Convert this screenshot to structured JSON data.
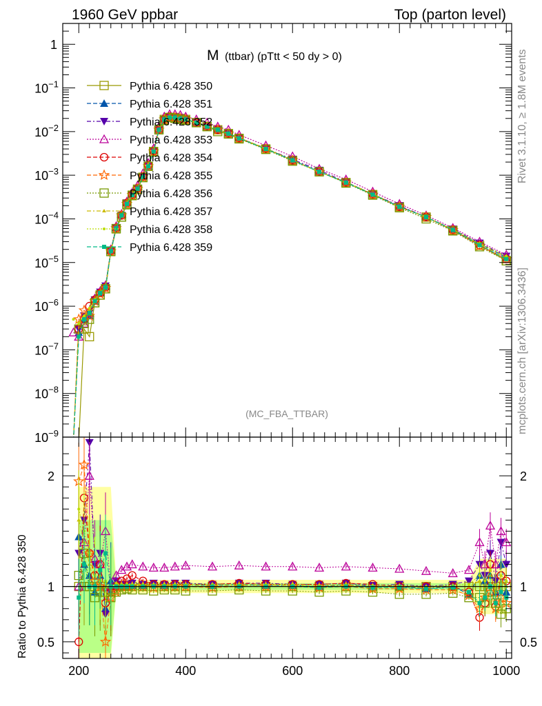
{
  "header": {
    "left": "1960 GeV ppbar",
    "right": "Top (parton level)"
  },
  "side_labels": {
    "rivet": "Rivet 3.1.10, ≥ 1.8M events",
    "mcplots": "mcplots.cern.ch [arXiv:1306.3436]"
  },
  "plot_title": {
    "main": "M",
    "sub": "(ttbar)  (pTtt < 50 dy > 0)"
  },
  "analysis_tag": "(MC_FBA_TTBAR)",
  "ratio_ylabel": "Ratio to Pythia 6.428 350",
  "colors": {
    "frame": "#000000",
    "grey_text": "#888888",
    "ref_band": "#ffff66",
    "ref_band_inner": "#66ff66"
  },
  "chart_data": [
    {
      "type": "line",
      "panel": "main",
      "yscale": "log",
      "xlim": [
        170,
        1010
      ],
      "ylim": [
        1e-09,
        3
      ],
      "y_ticks": [
        {
          "value": 1,
          "label": "1"
        },
        {
          "value": 0.1,
          "label": "10^-1"
        },
        {
          "value": 0.01,
          "label": "10^-2"
        },
        {
          "value": 0.001,
          "label": "10^-3"
        },
        {
          "value": 0.0001,
          "label": "10^-4"
        },
        {
          "value": 1e-05,
          "label": "10^-5"
        },
        {
          "value": 1e-06,
          "label": "10^-6"
        },
        {
          "value": 1e-07,
          "label": "10^-7"
        },
        {
          "value": 1e-08,
          "label": "10^-8"
        },
        {
          "value": 1e-09,
          "label": "10^-9"
        }
      ],
      "legend_position": "top-left",
      "x": [
        190,
        200,
        210,
        220,
        230,
        240,
        250,
        260,
        270,
        280,
        290,
        300,
        310,
        320,
        330,
        340,
        350,
        360,
        370,
        380,
        390,
        400,
        420,
        440,
        460,
        480,
        500,
        550,
        600,
        650,
        700,
        750,
        800,
        850,
        900,
        950,
        1000
      ],
      "series": [
        {
          "name": "Pythia 6.428 350",
          "color": "#999900",
          "marker": "square-open",
          "dash": "solid",
          "values": [
            0.0,
            0.0,
            3e-07,
            2e-07,
            1.2e-06,
            1.8e-06,
            2.5e-06,
            1.8e-05,
            6e-05,
            0.00011,
            0.00022,
            0.00035,
            0.00048,
            0.0009,
            0.0016,
            0.0035,
            0.011,
            0.019,
            0.021,
            0.021,
            0.02,
            0.019,
            0.016,
            0.013,
            0.011,
            0.009,
            0.007,
            0.004,
            0.0022,
            0.0012,
            0.00068,
            0.00036,
            0.00019,
            0.00011,
            5.5e-05,
            2.5e-05,
            1.1e-05
          ]
        },
        {
          "name": "Pythia 6.428 351",
          "color": "#0055aa",
          "marker": "triangle-up",
          "dash": "dash",
          "values": [
            0.0,
            2.5e-07,
            5e-07,
            6e-07,
            1.3e-06,
            2e-06,
            2.8e-06,
            1.85e-05,
            6.2e-05,
            0.00012,
            0.00023,
            0.00036,
            0.00049,
            0.00092,
            0.0016,
            0.0036,
            0.011,
            0.019,
            0.021,
            0.021,
            0.02,
            0.019,
            0.016,
            0.013,
            0.011,
            0.0091,
            0.0071,
            0.0041,
            0.0022,
            0.0012,
            0.00069,
            0.00037,
            0.00019,
            0.00011,
            5.7e-05,
            2.7e-05,
            1.3e-05
          ]
        },
        {
          "name": "Pythia 6.428 352",
          "color": "#5500aa",
          "marker": "triangle-down",
          "dash": "dashdot",
          "values": [
            0.0,
            3e-07,
            6e-07,
            7e-07,
            1.4e-06,
            2.1e-06,
            2.9e-06,
            1.9e-05,
            6.3e-05,
            0.00012,
            0.00023,
            0.00036,
            0.0005,
            0.00093,
            0.0017,
            0.0036,
            0.011,
            0.019,
            0.022,
            0.021,
            0.02,
            0.019,
            0.016,
            0.013,
            0.011,
            0.0092,
            0.0072,
            0.0041,
            0.0023,
            0.0013,
            0.0007,
            0.00037,
            0.0002,
            0.00011,
            5.8e-05,
            2.8e-05,
            1.4e-05
          ]
        },
        {
          "name": "Pythia 6.428 353",
          "color": "#bb0099",
          "marker": "triangle-up-open",
          "dash": "dot",
          "values": [
            2.5e-07,
            2e-07,
            4e-07,
            7e-07,
            1.5e-06,
            2.2e-06,
            3e-06,
            2e-05,
            6.8e-05,
            0.00013,
            0.00025,
            0.0004,
            0.00058,
            0.0011,
            0.0019,
            0.0041,
            0.013,
            0.022,
            0.025,
            0.025,
            0.024,
            0.022,
            0.019,
            0.016,
            0.013,
            0.011,
            0.0084,
            0.0048,
            0.0027,
            0.0014,
            0.0008,
            0.00042,
            0.00022,
            0.00012,
            6.2e-05,
            3e-05,
            1.5e-05
          ]
        },
        {
          "name": "Pythia 6.428 354",
          "color": "#dd0000",
          "marker": "circle-open",
          "dash": "dash",
          "values": [
            0.0,
            3e-07,
            5e-07,
            1e-06,
            1.4e-06,
            2e-06,
            2.7e-06,
            1.85e-05,
            6.2e-05,
            0.00012,
            0.00023,
            0.00036,
            0.0005,
            0.00094,
            0.0017,
            0.0036,
            0.011,
            0.019,
            0.022,
            0.021,
            0.02,
            0.019,
            0.016,
            0.013,
            0.011,
            0.0091,
            0.0071,
            0.0041,
            0.0022,
            0.0012,
            0.00069,
            0.00037,
            0.00019,
            0.00011,
            5.6e-05,
            2.5e-05,
            1.2e-05
          ]
        },
        {
          "name": "Pythia 6.428 355",
          "color": "#ff6600",
          "marker": "star-open",
          "dash": "dash",
          "values": [
            0.0,
            5e-07,
            8e-07,
            6e-07,
            1.3e-06,
            1.9e-06,
            2.6e-06,
            1.8e-05,
            6.1e-05,
            0.00012,
            0.00022,
            0.00035,
            0.00049,
            0.00091,
            0.0016,
            0.0035,
            0.011,
            0.019,
            0.021,
            0.021,
            0.02,
            0.019,
            0.016,
            0.013,
            0.011,
            0.009,
            0.007,
            0.004,
            0.0022,
            0.0012,
            0.00068,
            0.00036,
            0.00019,
            0.00011,
            5.5e-05,
            2.4e-05,
            1.2e-05
          ]
        },
        {
          "name": "Pythia 6.428 356",
          "color": "#779900",
          "marker": "square-open",
          "dash": "dot",
          "values": [
            0.0,
            3e-07,
            4e-07,
            5e-07,
            1.2e-06,
            1.8e-06,
            2.5e-06,
            1.78e-05,
            5.9e-05,
            0.00011,
            0.00021,
            0.00034,
            0.00047,
            0.00088,
            0.0016,
            0.0034,
            0.011,
            0.018,
            0.021,
            0.02,
            0.019,
            0.018,
            0.016,
            0.013,
            0.01,
            0.0088,
            0.0068,
            0.0039,
            0.0021,
            0.0012,
            0.00066,
            0.00035,
            0.00018,
            0.0001,
            5.3e-05,
            2.3e-05,
            1.1e-05
          ]
        },
        {
          "name": "Pythia 6.428 357",
          "color": "#ccbb00",
          "marker": "tri-small",
          "dash": "dashdot",
          "values": [
            0.0,
            4e-07,
            6e-07,
            8e-07,
            1.4e-06,
            2e-06,
            2.7e-06,
            1.85e-05,
            6.2e-05,
            0.00012,
            0.00023,
            0.00036,
            0.0005,
            0.00093,
            0.0017,
            0.0036,
            0.011,
            0.019,
            0.022,
            0.021,
            0.02,
            0.019,
            0.016,
            0.013,
            0.011,
            0.0091,
            0.0071,
            0.0041,
            0.0022,
            0.0012,
            0.00069,
            0.00037,
            0.00019,
            0.00011,
            5.7e-05,
            2.6e-05,
            1.3e-05
          ]
        },
        {
          "name": "Pythia 6.428 358",
          "color": "#bbdd00",
          "marker": "dot-small",
          "dash": "dot",
          "values": [
            5e-07,
            4e-07,
            6e-07,
            9e-07,
            1.4e-06,
            2.1e-06,
            2.8e-06,
            1.88e-05,
            6.3e-05,
            0.00012,
            0.00023,
            0.00036,
            0.0005,
            0.00094,
            0.0017,
            0.0036,
            0.011,
            0.019,
            0.022,
            0.021,
            0.02,
            0.019,
            0.016,
            0.013,
            0.011,
            0.0091,
            0.0071,
            0.0041,
            0.0022,
            0.0012,
            0.00069,
            0.00037,
            0.00019,
            0.00011,
            5.7e-05,
            2.7e-05,
            1.4e-05
          ]
        },
        {
          "name": "Pythia 6.428 359",
          "color": "#00bb88",
          "marker": "square-small",
          "dash": "dash",
          "values": [
            0.0,
            2e-07,
            5e-07,
            7e-07,
            1.3e-06,
            2e-06,
            2.7e-06,
            1.83e-05,
            6.1e-05,
            0.00012,
            0.00022,
            0.00035,
            0.00049,
            0.00092,
            0.0016,
            0.0035,
            0.011,
            0.019,
            0.021,
            0.021,
            0.02,
            0.019,
            0.016,
            0.013,
            0.011,
            0.009,
            0.007,
            0.004,
            0.0022,
            0.0012,
            0.00068,
            0.00036,
            0.00019,
            0.00011,
            5.6e-05,
            2.5e-05,
            1.2e-05
          ]
        }
      ]
    },
    {
      "type": "line",
      "panel": "ratio",
      "xlim": [
        170,
        1010
      ],
      "ylim": [
        0.35,
        2.35
      ],
      "ylabel": "Ratio to Pythia 6.428 350",
      "x_ticks": [
        200,
        400,
        600,
        800,
        1000
      ],
      "y_ticks": [
        {
          "value": 0.5,
          "label": "0.5"
        },
        {
          "value": 1,
          "label": "1"
        },
        {
          "value": 2,
          "label": "2"
        }
      ],
      "reference_line": 1,
      "x": [
        200,
        210,
        220,
        230,
        240,
        250,
        260,
        270,
        280,
        290,
        300,
        320,
        340,
        360,
        380,
        400,
        450,
        500,
        550,
        600,
        650,
        700,
        750,
        800,
        850,
        900,
        930,
        950,
        960,
        970,
        980,
        990,
        1000
      ],
      "series": [
        {
          "name": "Pythia 6.428 350",
          "values": [
            1.0,
            1.0,
            1.0,
            1.0,
            1.0,
            1.0,
            1.0,
            1.0,
            1.0,
            1.0,
            1.0,
            1.0,
            1.0,
            1.0,
            1.0,
            1.0,
            1.0,
            1.0,
            1.0,
            1.0,
            1.0,
            1.0,
            1.0,
            1.0,
            1.0,
            1.0,
            1.0,
            1.0,
            1.0,
            1.0,
            1.0,
            1.0,
            1.0
          ]
        },
        {
          "name": "Pythia 6.428 351",
          "values": [
            1.45,
            1.2,
            1.1,
            0.95,
            1.1,
            0.8,
            1.05,
            1.0,
            1.0,
            1.0,
            1.01,
            1.01,
            1.02,
            1.01,
            1.02,
            1.02,
            1.01,
            1.02,
            1.01,
            1.01,
            1.0,
            1.02,
            1.0,
            1.0,
            0.98,
            1.0,
            0.93,
            1.1,
            1.05,
            1.1,
            0.95,
            1.2,
            0.95
          ]
        },
        {
          "name": "Pythia 6.428 352",
          "values": [
            1.3,
            1.6,
            2.3,
            1.2,
            1.3,
            0.75,
            0.95,
            1.05,
            1.02,
            1.02,
            1.03,
            1.02,
            1.03,
            1.02,
            1.03,
            1.03,
            1.02,
            1.03,
            1.03,
            1.02,
            1.02,
            1.03,
            1.01,
            1.02,
            1.0,
            1.02,
            1.05,
            1.2,
            1.1,
            1.3,
            1.05,
            1.4,
            1.2
          ]
        },
        {
          "name": "Pythia 6.428 353",
          "values": [
            1.0,
            1.4,
            2.0,
            1.25,
            1.2,
            1.5,
            1.0,
            1.1,
            1.15,
            1.18,
            1.2,
            1.18,
            1.17,
            1.17,
            1.18,
            1.19,
            1.18,
            1.19,
            1.18,
            1.18,
            1.17,
            1.18,
            1.17,
            1.16,
            1.14,
            1.12,
            1.15,
            1.4,
            1.2,
            1.55,
            1.2,
            1.5,
            1.4
          ]
        },
        {
          "name": "Pythia 6.428 354",
          "values": [
            0.5,
            1.8,
            1.3,
            1.1,
            1.2,
            0.85,
            0.95,
            1.0,
            1.05,
            1.07,
            1.1,
            1.05,
            1.02,
            1.02,
            1.02,
            1.02,
            1.02,
            1.03,
            1.02,
            1.02,
            1.02,
            1.03,
            1.02,
            1.0,
            1.0,
            1.0,
            0.95,
            0.72,
            0.85,
            1.2,
            0.82,
            1.1,
            1.05
          ]
        },
        {
          "name": "Pythia 6.428 355",
          "values": [
            1.95,
            2.1,
            1.3,
            1.05,
            1.0,
            0.5,
            0.9,
            0.95,
            1.0,
            1.0,
            1.0,
            1.0,
            0.99,
            1.0,
            1.0,
            1.0,
            0.99,
            1.0,
            1.0,
            1.0,
            0.99,
            1.0,
            0.98,
            0.98,
            0.97,
            0.97,
            0.92,
            0.8,
            0.9,
            0.95,
            0.8,
            0.9,
            0.85
          ]
        },
        {
          "name": "Pythia 6.428 356",
          "values": [
            1.1,
            1.3,
            1.0,
            0.9,
            0.95,
            0.95,
            0.9,
            0.95,
            0.97,
            0.98,
            0.97,
            0.97,
            0.96,
            0.97,
            0.97,
            0.96,
            0.96,
            0.97,
            0.96,
            0.96,
            0.95,
            0.96,
            0.95,
            0.93,
            0.93,
            0.94,
            0.9,
            0.9,
            0.85,
            0.95,
            0.85,
            0.75,
            0.8
          ]
        },
        {
          "name": "Pythia 6.428 357",
          "values": [
            1.6,
            1.4,
            1.2,
            1.0,
            1.1,
            1.0,
            1.0,
            1.02,
            1.01,
            1.01,
            1.02,
            1.01,
            1.01,
            1.01,
            1.01,
            1.01,
            1.01,
            1.01,
            1.01,
            1.01,
            1.0,
            1.01,
            1.0,
            1.0,
            0.99,
            1.0,
            1.0,
            1.05,
            1.0,
            1.1,
            0.95,
            1.05,
            1.0
          ]
        },
        {
          "name": "Pythia 6.428 358",
          "values": [
            1.7,
            1.5,
            1.3,
            1.1,
            1.05,
            1.05,
            1.0,
            1.03,
            1.02,
            1.02,
            1.02,
            1.02,
            1.02,
            1.02,
            1.02,
            1.02,
            1.02,
            1.02,
            1.02,
            1.02,
            1.01,
            1.02,
            1.01,
            1.01,
            1.0,
            1.01,
            1.02,
            1.1,
            1.05,
            1.15,
            1.0,
            1.1,
            1.05
          ]
        },
        {
          "name": "Pythia 6.428 359",
          "values": [
            0.9,
            1.2,
            1.0,
            1.0,
            1.15,
            1.3,
            1.0,
            1.0,
            1.0,
            1.0,
            1.0,
            1.0,
            1.0,
            1.0,
            1.0,
            1.0,
            1.0,
            1.0,
            1.0,
            1.0,
            0.99,
            1.0,
            0.99,
            0.99,
            0.98,
            0.99,
            0.95,
            0.85,
            0.9,
            1.0,
            0.85,
            0.95,
            0.9
          ]
        }
      ]
    }
  ]
}
